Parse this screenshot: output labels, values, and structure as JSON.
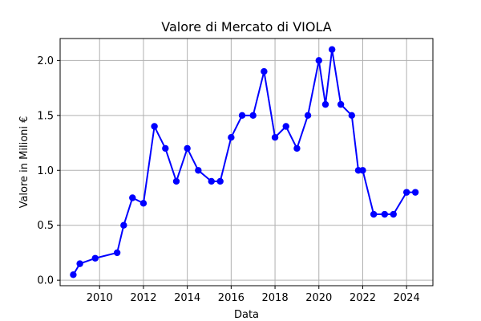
{
  "chart_data": {
    "type": "line",
    "title": "Valore di Mercato di VIOLA",
    "xlabel": "Data",
    "ylabel": "Valore in Milioni €",
    "xlim": [
      2008.2,
      2025.2
    ],
    "ylim": [
      -0.05,
      2.2
    ],
    "xticks": [
      2010,
      2012,
      2014,
      2016,
      2018,
      2020,
      2022,
      2024
    ],
    "xtick_labels": [
      "2010",
      "2012",
      "2014",
      "2016",
      "2018",
      "2020",
      "2022",
      "2024"
    ],
    "yticks": [
      0.0,
      0.5,
      1.0,
      1.5,
      2.0
    ],
    "ytick_labels": [
      "0.0",
      "0.5",
      "1.0",
      "1.5",
      "2.0"
    ],
    "grid": true,
    "color": "#0000ff",
    "series": [
      {
        "x": [
          2008.8,
          2009.1,
          2009.8,
          2010.8,
          2011.1,
          2011.5,
          2012.0,
          2012.5,
          2013.0,
          2013.5,
          2014.0,
          2014.5,
          2015.1,
          2015.5,
          2016.0,
          2016.5,
          2017.0,
          2017.5,
          2018.0,
          2018.5,
          2019.0,
          2019.5,
          2020.0,
          2020.3,
          2020.6,
          2021.0,
          2021.5,
          2021.8,
          2022.0,
          2022.5,
          2023.0,
          2023.4,
          2024.0,
          2024.4
        ],
        "values": [
          0.05,
          0.15,
          0.2,
          0.25,
          0.5,
          0.75,
          0.7,
          1.4,
          1.2,
          0.9,
          1.2,
          1.0,
          0.9,
          0.9,
          1.3,
          1.5,
          1.5,
          1.9,
          1.3,
          1.4,
          1.2,
          1.5,
          2.0,
          1.6,
          2.1,
          1.6,
          1.5,
          1.0,
          1.0,
          0.6,
          0.6,
          0.6,
          0.8,
          0.8
        ]
      }
    ]
  }
}
